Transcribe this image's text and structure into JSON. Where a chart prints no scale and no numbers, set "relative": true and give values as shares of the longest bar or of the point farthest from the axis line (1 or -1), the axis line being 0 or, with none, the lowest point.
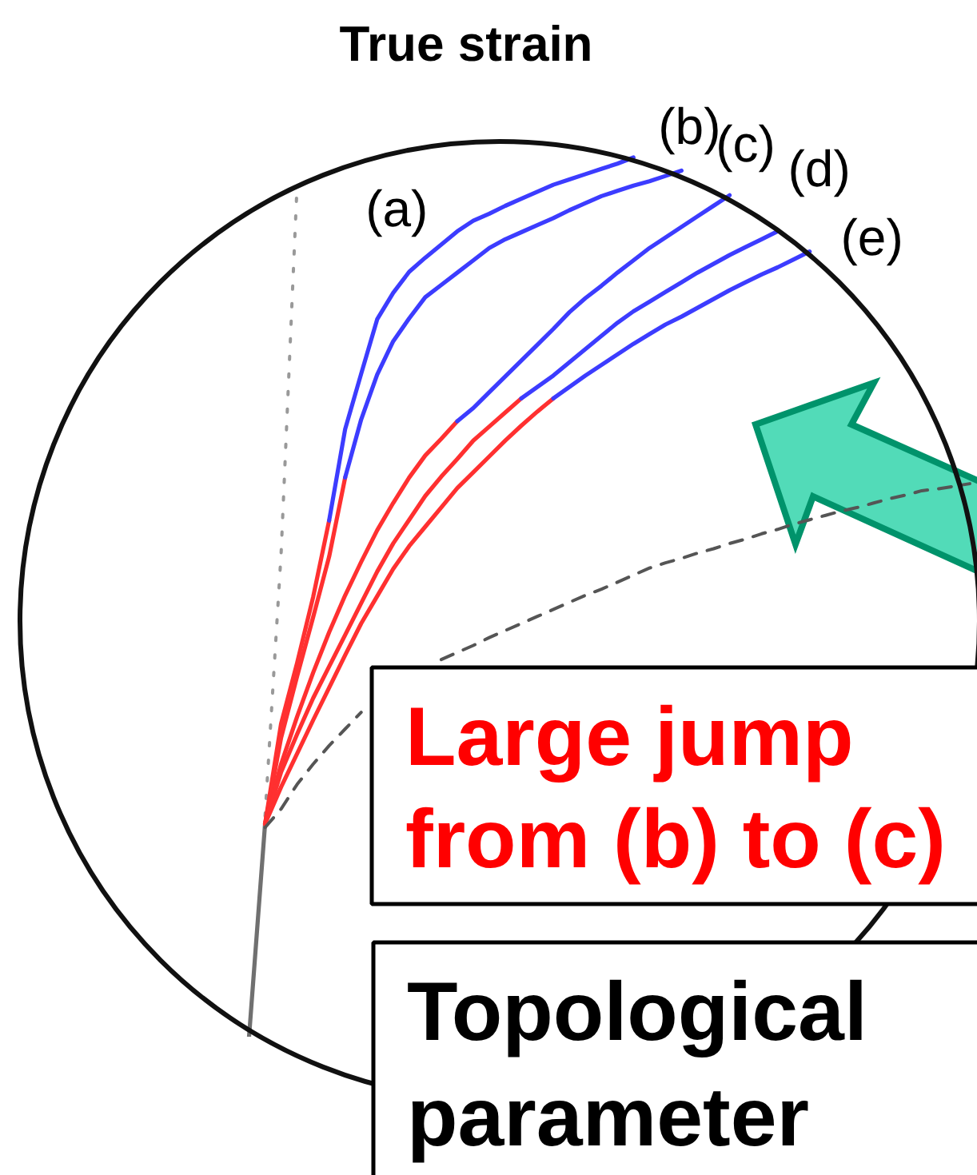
{
  "chart_data": {
    "type": "line",
    "relative": true,
    "tick_labels": false,
    "ylabel": "True strain",
    "xlabel": "Topological parameter",
    "annotations": [
      "Large jump from (b) to (c)"
    ],
    "categories": [
      null,
      null,
      null,
      null,
      null,
      null,
      null,
      null,
      null,
      null,
      null,
      null,
      null,
      null,
      null,
      null,
      null,
      null,
      null,
      null,
      null,
      null,
      null,
      null,
      null,
      null,
      null,
      null,
      null,
      null,
      null,
      null,
      null,
      null,
      null,
      null,
      null,
      null,
      null,
      null,
      null,
      null,
      null,
      null,
      null,
      null,
      null,
      null,
      null,
      null,
      null,
      null,
      null,
      null,
      null,
      null,
      null,
      null,
      null,
      null,
      null
    ],
    "series": [
      {
        "color": "#707070",
        "values": [
          null,
          null,
          null,
          null,
          null,
          null,
          null,
          null,
          null,
          null,
          null,
          null,
          null,
          null,
          null,
          0,
          0.242,
          null,
          null,
          null,
          null,
          null,
          null,
          null,
          null,
          null,
          null,
          null,
          null,
          null,
          null,
          null,
          null,
          null,
          null,
          null,
          null,
          null,
          null,
          null,
          null,
          null,
          null,
          null,
          null,
          null,
          null,
          null,
          null,
          null,
          null,
          null,
          null,
          null,
          null,
          null,
          null,
          null,
          null,
          null,
          null
        ]
      },
      {
        "color": "#999999",
        "line_style": "dotted",
        "values": [
          null,
          null,
          null,
          null,
          null,
          null,
          null,
          null,
          null,
          null,
          null,
          null,
          null,
          null,
          null,
          null,
          0.251,
          0.549,
          0.969,
          null,
          null,
          null,
          null,
          null,
          null,
          null,
          null,
          null,
          null,
          null,
          null,
          null,
          null,
          null,
          null,
          null,
          null,
          null,
          null,
          null,
          null,
          null,
          null,
          null,
          null,
          null,
          null,
          null,
          null,
          null,
          null,
          null,
          null,
          null,
          null,
          null,
          null,
          null,
          null,
          null,
          null
        ]
      },
      {
        "color": "#ff3030",
        "values": [
          null,
          null,
          null,
          null,
          null,
          null,
          null,
          null,
          null,
          null,
          null,
          null,
          null,
          null,
          null,
          null,
          0.242,
          0.356,
          0.425,
          0.5,
          0.587,
          null,
          null,
          null,
          null,
          null,
          null,
          null,
          null,
          null,
          null,
          null,
          null,
          null,
          null,
          null,
          null,
          null,
          null,
          null,
          null,
          null,
          null,
          null,
          null,
          null,
          null,
          null,
          null,
          null,
          null,
          null,
          null,
          null,
          null,
          null,
          null,
          null,
          null,
          null,
          null
        ]
      },
      {
        "name": "(a)",
        "color": "#3c3cff",
        "values": [
          null,
          null,
          null,
          null,
          null,
          null,
          null,
          null,
          null,
          null,
          null,
          null,
          null,
          null,
          null,
          null,
          null,
          null,
          null,
          null,
          0.587,
          0.691,
          0.754,
          0.816,
          0.846,
          0.87,
          0.886,
          0.901,
          0.916,
          0.928,
          0.936,
          0.945,
          0.953,
          0.961,
          0.969,
          0.975,
          0.981,
          0.987,
          0.993,
          1,
          null,
          null,
          null,
          null,
          null,
          null,
          null,
          null,
          null,
          null,
          null,
          null,
          null,
          null,
          null,
          null,
          null,
          null,
          null,
          null,
          null
        ]
      },
      {
        "color": "#ff3030",
        "values": [
          null,
          null,
          null,
          null,
          null,
          null,
          null,
          null,
          null,
          null,
          null,
          null,
          null,
          null,
          null,
          null,
          0.242,
          0.34,
          0.41,
          0.477,
          0.546,
          0.636,
          null,
          null,
          null,
          null,
          null,
          null,
          null,
          null,
          null,
          null,
          null,
          null,
          null,
          null,
          null,
          null,
          null,
          null,
          null,
          null,
          null,
          null,
          null,
          null,
          null,
          null,
          null,
          null,
          null,
          null,
          null,
          null,
          null,
          null,
          null,
          null,
          null,
          null,
          null
        ]
      },
      {
        "name": "(b)",
        "color": "#3c3cff",
        "values": [
          null,
          null,
          null,
          null,
          null,
          null,
          null,
          null,
          null,
          null,
          null,
          null,
          null,
          null,
          null,
          null,
          null,
          null,
          null,
          null,
          null,
          0.636,
          0.702,
          0.753,
          0.791,
          0.817,
          0.841,
          0.855,
          0.869,
          0.883,
          0.897,
          0.907,
          0.915,
          0.923,
          0.931,
          0.94,
          0.948,
          0.956,
          0.962,
          0.968,
          0.973,
          0.979,
          0.985,
          null,
          null,
          null,
          null,
          null,
          null,
          null,
          null,
          null,
          null,
          null,
          null,
          null,
          null,
          null,
          null,
          null,
          null
        ]
      },
      {
        "color": "#ff3030",
        "values": [
          null,
          null,
          null,
          null,
          null,
          null,
          null,
          null,
          null,
          null,
          null,
          null,
          null,
          null,
          null,
          null,
          0.242,
          0.31,
          0.364,
          0.414,
          0.46,
          0.502,
          0.54,
          0.576,
          0.607,
          0.636,
          0.661,
          0.68,
          0.7,
          null,
          null,
          null,
          null,
          null,
          null,
          null,
          null,
          null,
          null,
          null,
          null,
          null,
          null,
          null,
          null,
          null,
          null,
          null,
          null,
          null,
          null,
          null,
          null,
          null,
          null,
          null,
          null,
          null,
          null,
          null,
          null
        ]
      },
      {
        "name": "(c)",
        "color": "#3c3cff",
        "values": [
          null,
          null,
          null,
          null,
          null,
          null,
          null,
          null,
          null,
          null,
          null,
          null,
          null,
          null,
          null,
          null,
          null,
          null,
          null,
          null,
          null,
          null,
          null,
          null,
          null,
          null,
          null,
          null,
          0.7,
          0.715,
          0.733,
          0.751,
          0.769,
          0.787,
          0.805,
          0.824,
          0.84,
          0.854,
          0.869,
          0.883,
          0.897,
          0.909,
          0.921,
          0.933,
          0.945,
          0.957,
          null,
          null,
          null,
          null,
          null,
          null,
          null,
          null,
          null,
          null,
          null,
          null,
          null,
          null,
          null
        ]
      },
      {
        "color": "#ff3030",
        "values": [
          null,
          null,
          null,
          null,
          null,
          null,
          null,
          null,
          null,
          null,
          null,
          null,
          null,
          null,
          null,
          null,
          0.242,
          0.301,
          0.344,
          0.385,
          0.421,
          0.457,
          0.493,
          0.529,
          0.561,
          0.588,
          0.615,
          0.637,
          0.657,
          0.678,
          0.694,
          0.71,
          0.726,
          null,
          null,
          null,
          null,
          null,
          null,
          null,
          null,
          null,
          null,
          null,
          null,
          null,
          null,
          null,
          null,
          null,
          null,
          null,
          null,
          null,
          null,
          null,
          null,
          null,
          null,
          null,
          null
        ]
      },
      {
        "name": "(d)",
        "color": "#3c3cff",
        "values": [
          null,
          null,
          null,
          null,
          null,
          null,
          null,
          null,
          null,
          null,
          null,
          null,
          null,
          null,
          null,
          null,
          null,
          null,
          null,
          null,
          null,
          null,
          null,
          null,
          null,
          null,
          null,
          null,
          null,
          null,
          null,
          null,
          0.726,
          0.739,
          0.752,
          0.767,
          0.782,
          0.797,
          0.812,
          0.825,
          0.836,
          0.847,
          0.858,
          0.869,
          0.879,
          0.889,
          0.898,
          0.907,
          0.916,
          null,
          null,
          null,
          null,
          null,
          null,
          null,
          null,
          null,
          null,
          null,
          null
        ]
      },
      {
        "color": "#ff3030",
        "values": [
          null,
          null,
          null,
          null,
          null,
          null,
          null,
          null,
          null,
          null,
          null,
          null,
          null,
          null,
          null,
          null,
          0.242,
          0.284,
          0.322,
          0.36,
          0.397,
          0.434,
          0.47,
          0.501,
          0.532,
          0.558,
          0.58,
          0.602,
          0.624,
          0.642,
          0.66,
          0.678,
          0.695,
          0.711,
          0.726,
          null,
          null,
          null,
          null,
          null,
          null,
          null,
          null,
          null,
          null,
          null,
          null,
          null,
          null,
          null,
          null,
          null,
          null,
          null,
          null,
          null,
          null,
          null,
          null,
          null,
          null
        ]
      },
      {
        "name": "(e)",
        "color": "#3c3cff",
        "values": [
          null,
          null,
          null,
          null,
          null,
          null,
          null,
          null,
          null,
          null,
          null,
          null,
          null,
          null,
          null,
          null,
          null,
          null,
          null,
          null,
          null,
          null,
          null,
          null,
          null,
          null,
          null,
          null,
          null,
          null,
          null,
          null,
          null,
          null,
          0.726,
          0.739,
          0.752,
          0.764,
          0.776,
          0.788,
          0.799,
          0.81,
          0.819,
          0.829,
          0.839,
          0.849,
          0.858,
          0.867,
          0.875,
          0.884,
          0.893,
          null,
          null,
          null,
          null,
          null,
          null,
          null,
          null,
          null,
          null
        ]
      },
      {
        "color": "#555555",
        "line_style": "dashed",
        "values": [
          null,
          null,
          null,
          null,
          null,
          null,
          null,
          null,
          null,
          null,
          null,
          null,
          null,
          null,
          null,
          null,
          0.238,
          0.259,
          0.287,
          0.31,
          0.331,
          0.35,
          0.369,
          null,
          null,
          null,
          null,
          0.429,
          0.437,
          0.445,
          0.454,
          0.462,
          0.47,
          0.478,
          0.486,
          0.494,
          0.502,
          0.509,
          0.517,
          0.525,
          0.533,
          0.539,
          0.544,
          0.55,
          0.555,
          0.561,
          0.566,
          0.572,
          0.577,
          0.583,
          0.588,
          0.593,
          0.598,
          0.602,
          0.607,
          0.612,
          0.616,
          0.621,
          0.623,
          0.626,
          0.629
        ]
      }
    ]
  }
}
